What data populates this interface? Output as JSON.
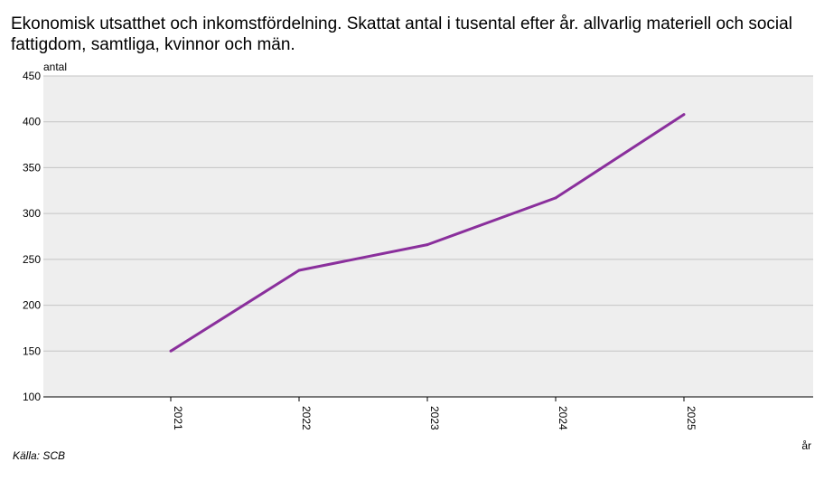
{
  "title": "Ekonomisk utsatthet och inkomstfördelning. Skattat antal i tusental efter år. allvarlig materiell och social fattigdom, samtliga, kvinnor och män.",
  "source": "Källa: SCB",
  "colors": {
    "line": "#8a2f9c",
    "plot_bg": "#eeeeee",
    "grid": "#c4c4c4",
    "axis": "#000000"
  },
  "chart_data": {
    "type": "line",
    "x": [
      "2021",
      "2022",
      "2023",
      "2024",
      "2025"
    ],
    "series": [
      {
        "values": [
          150,
          238,
          266,
          317,
          408
        ]
      }
    ],
    "ylabel": "antal",
    "xlabel": "år",
    "ylim": [
      100,
      450
    ],
    "yticks": [
      100,
      150,
      200,
      250,
      300,
      350,
      400,
      450
    ],
    "grid": true
  }
}
